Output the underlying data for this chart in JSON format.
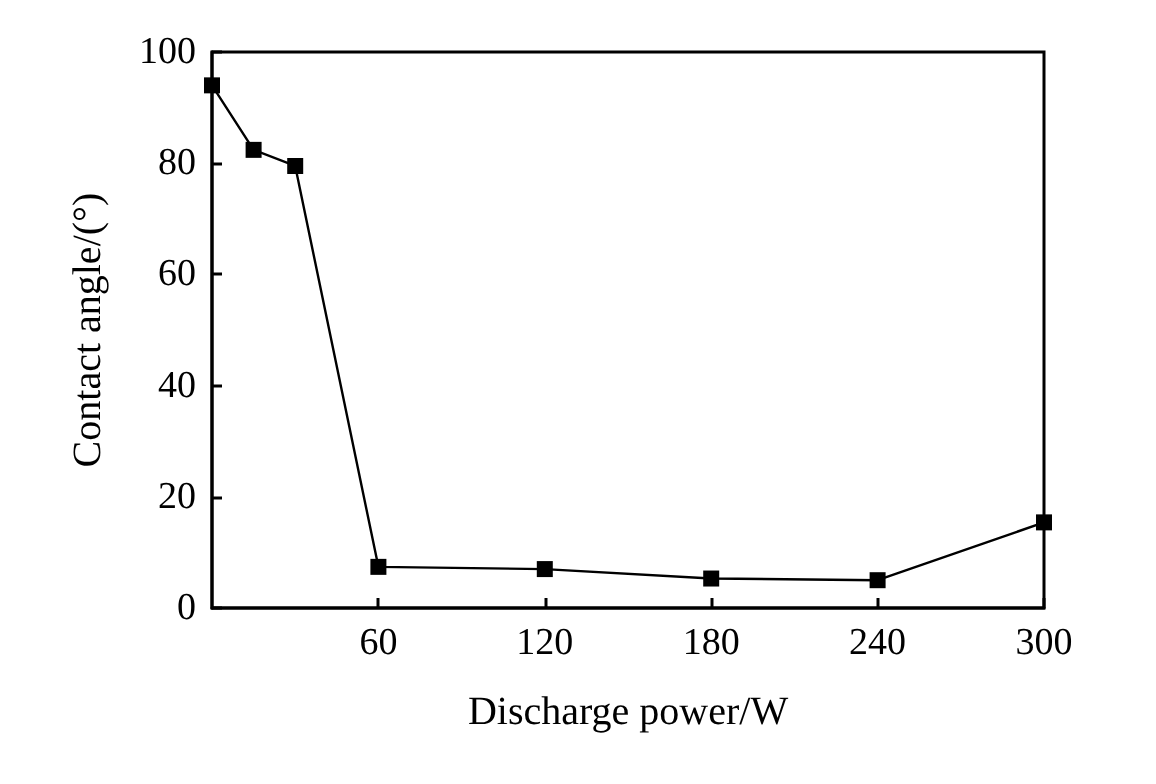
{
  "chart_data": {
    "type": "line",
    "xlabel": "Discharge power/W",
    "ylabel": "Contact angle/(°)",
    "x": [
      0,
      15,
      30,
      60,
      120,
      180,
      240,
      300
    ],
    "series": [
      {
        "color": "#000000",
        "values": [
          94,
          82.4,
          79.5,
          7.4,
          7,
          5.3,
          5,
          15.4
        ]
      }
    ],
    "xlim": [
      0,
      300
    ],
    "xticks": [
      60,
      120,
      180,
      240,
      300
    ],
    "ylim": [
      0,
      100
    ],
    "yticks": [
      0,
      20,
      40,
      60,
      80,
      100
    ],
    "grid": false,
    "marker": "square",
    "line_style": "solid"
  }
}
